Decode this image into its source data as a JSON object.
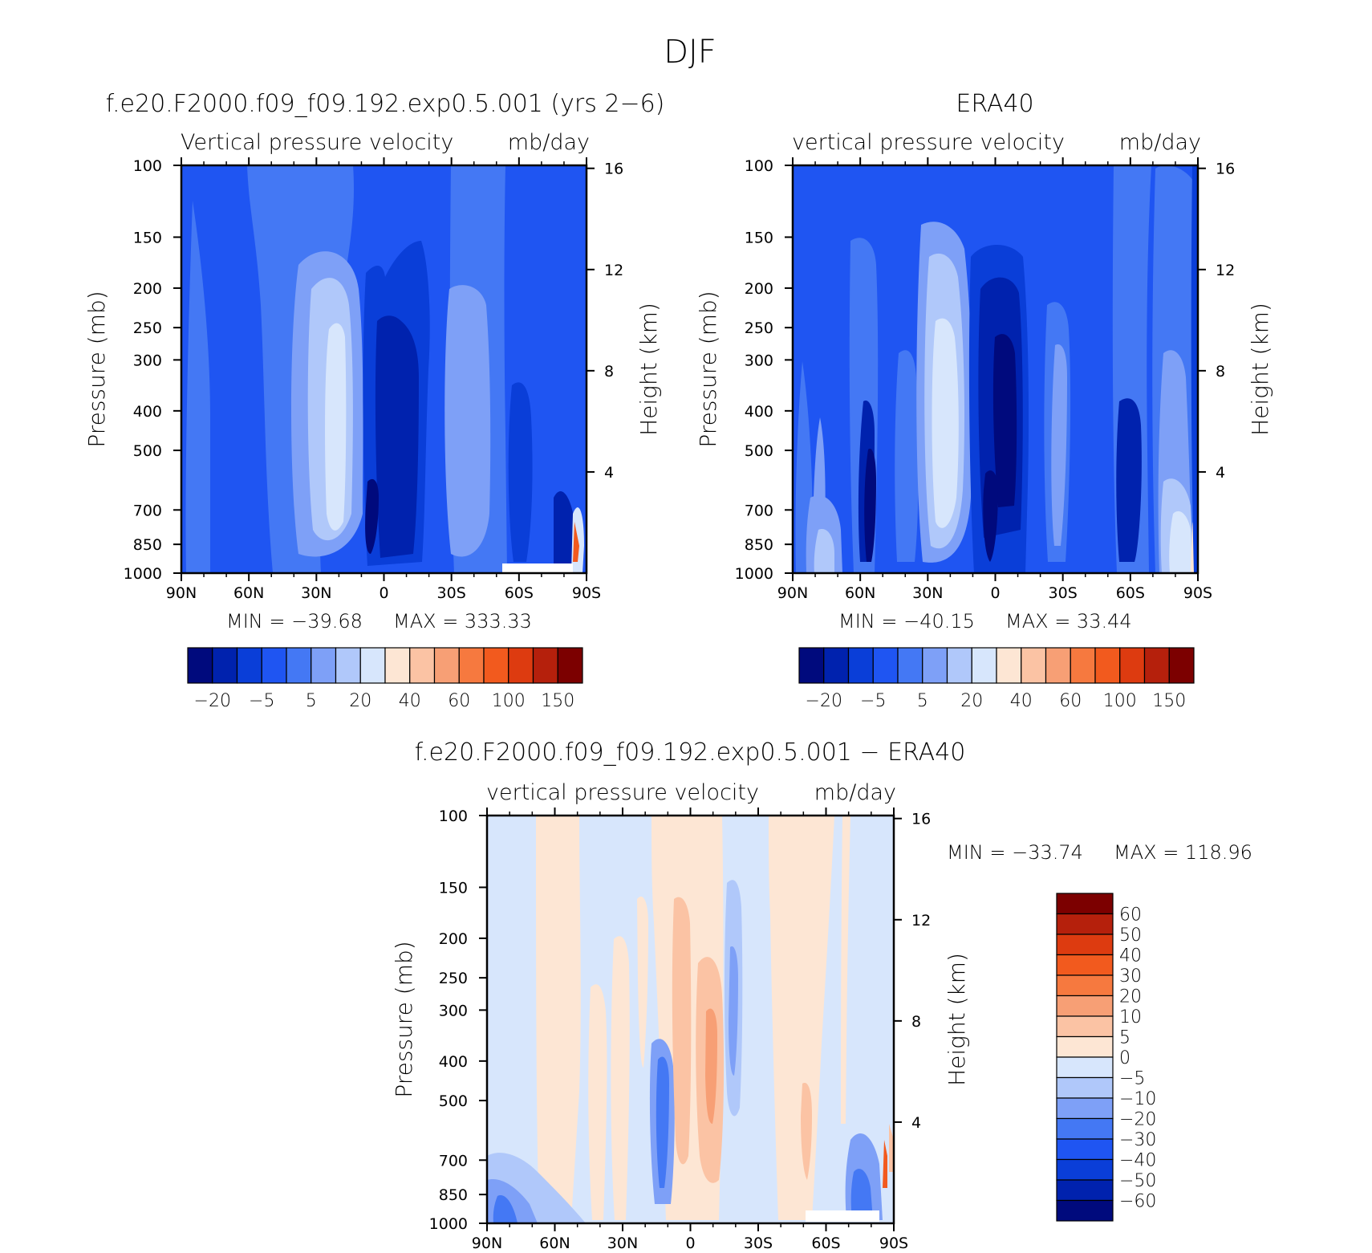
{
  "figure": {
    "title": "DJF"
  },
  "panels": [
    {
      "id": "model",
      "title": "f.e20.F2000.f09_f09.192.exp0.5.001 (yrs 2−6)",
      "var_label": "Vertical pressure velocity",
      "units": "mb/day",
      "ylabel": "Pressure (mb)",
      "y2label": "Height (km)",
      "min_text": "MIN = −39.68",
      "max_text": "MAX = 333.33"
    },
    {
      "id": "obs",
      "title": "ERA40",
      "var_label": "vertical pressure velocity",
      "units": "mb/day",
      "ylabel": "Pressure (mb)",
      "y2label": "Height (km)",
      "min_text": "MIN = −40.15",
      "max_text": "MAX =  33.44"
    },
    {
      "id": "diff",
      "title": "f.e20.F2000.f09_f09.192.exp0.5.001 − ERA40",
      "var_label": "vertical pressure velocity",
      "units": "mb/day",
      "ylabel": "Pressure (mb)",
      "y2label": "Height (km)",
      "min_text": "MIN = −33.74",
      "max_text": "MAX = 118.96"
    }
  ],
  "chart_data": [
    {
      "type": "heatmap",
      "subtype": "filled-contour latitude-pressure cross section",
      "title": "f.e20.F2000.f09_f09.192.exp0.5.001 (yrs 2−6)",
      "x_ticks": [
        "90N",
        "60N",
        "30N",
        "0",
        "30S",
        "60S",
        "90S"
      ],
      "x_values": [
        90,
        60,
        30,
        0,
        -30,
        -60,
        -90
      ],
      "xlim": [
        90,
        -90
      ],
      "y_ticks": [
        100,
        150,
        200,
        250,
        300,
        400,
        500,
        700,
        850,
        1000
      ],
      "y_scale": "log",
      "ylim": [
        1000,
        100
      ],
      "y2_ticks": [
        16,
        12,
        8,
        4
      ],
      "min": -39.68,
      "max": 333.33,
      "colorbar_labels": [
        "−20",
        "−5",
        "5",
        "20",
        "40",
        "60",
        "100",
        "150"
      ],
      "colorbar_colors": [
        "#000a7d",
        "#0022ae",
        "#0a3ed8",
        "#1f55f2",
        "#4478f4",
        "#7ea0f7",
        "#b0c8fa",
        "#d7e6fc",
        "#fde6d4",
        "#fbc3a4",
        "#f79f75",
        "#f6793f",
        "#f25a1e",
        "#dd3b10",
        "#b5200c",
        "#7c0000"
      ]
    },
    {
      "type": "heatmap",
      "subtype": "filled-contour latitude-pressure cross section",
      "title": "ERA40",
      "x_ticks": [
        "90N",
        "60N",
        "30N",
        "0",
        "30S",
        "60S",
        "90S"
      ],
      "x_values": [
        90,
        60,
        30,
        0,
        -30,
        -60,
        -90
      ],
      "xlim": [
        90,
        -90
      ],
      "y_ticks": [
        100,
        150,
        200,
        250,
        300,
        400,
        500,
        700,
        850,
        1000
      ],
      "y_scale": "log",
      "ylim": [
        1000,
        100
      ],
      "y2_ticks": [
        16,
        12,
        8,
        4
      ],
      "min": -40.15,
      "max": 33.44,
      "colorbar_labels": [
        "−20",
        "−5",
        "5",
        "20",
        "40",
        "60",
        "100",
        "150"
      ],
      "colorbar_colors": [
        "#000a7d",
        "#0022ae",
        "#0a3ed8",
        "#1f55f2",
        "#4478f4",
        "#7ea0f7",
        "#b0c8fa",
        "#d7e6fc",
        "#fde6d4",
        "#fbc3a4",
        "#f79f75",
        "#f6793f",
        "#f25a1e",
        "#dd3b10",
        "#b5200c",
        "#7c0000"
      ]
    },
    {
      "type": "heatmap",
      "subtype": "filled-contour latitude-pressure cross section (difference)",
      "title": "f.e20.F2000.f09_f09.192.exp0.5.001 − ERA40",
      "x_ticks": [
        "90N",
        "60N",
        "30N",
        "0",
        "30S",
        "60S",
        "90S"
      ],
      "x_values": [
        90,
        60,
        30,
        0,
        -30,
        -60,
        -90
      ],
      "xlim": [
        90,
        -90
      ],
      "y_ticks": [
        100,
        150,
        200,
        250,
        300,
        400,
        500,
        700,
        850,
        1000
      ],
      "y_scale": "log",
      "ylim": [
        1000,
        100
      ],
      "y2_ticks": [
        16,
        12,
        8,
        4
      ],
      "min": -33.74,
      "max": 118.96,
      "colorbar_labels": [
        "60",
        "50",
        "40",
        "30",
        "20",
        "10",
        "5",
        "0",
        "−5",
        "−10",
        "−20",
        "−30",
        "−40",
        "−50",
        "−60"
      ],
      "colorbar_colors": [
        "#7c0000",
        "#b5200c",
        "#dd3b10",
        "#f25a1e",
        "#f6793f",
        "#f79f75",
        "#fbc3a4",
        "#fde6d4",
        "#d7e6fc",
        "#b0c8fa",
        "#7ea0f7",
        "#4478f4",
        "#1f55f2",
        "#0a3ed8",
        "#0022ae",
        "#000a7d"
      ]
    }
  ]
}
